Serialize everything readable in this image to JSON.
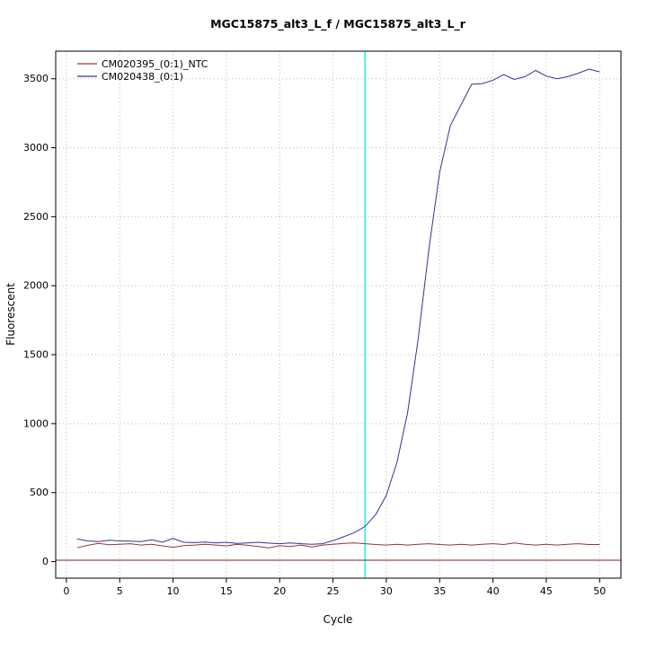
{
  "chart_data": {
    "type": "line",
    "title": "MGC15875_alt3_L_f / MGC15875_alt3_L_r",
    "xlabel": "Cycle",
    "ylabel": "Fluorescent",
    "xlim": [
      -1,
      52
    ],
    "ylim": [
      -120,
      3700
    ],
    "x_ticks": [
      0,
      5,
      10,
      15,
      20,
      25,
      30,
      35,
      40,
      45,
      50
    ],
    "y_ticks": [
      0,
      500,
      1000,
      1500,
      2000,
      2500,
      3000,
      3500
    ],
    "grid": "dotted",
    "legend_position": "top-left",
    "x": [
      1,
      2,
      3,
      4,
      5,
      6,
      7,
      8,
      9,
      10,
      11,
      12,
      13,
      14,
      15,
      16,
      17,
      18,
      19,
      20,
      21,
      22,
      23,
      24,
      25,
      26,
      27,
      28,
      29,
      30,
      31,
      32,
      33,
      34,
      35,
      36,
      37,
      38,
      39,
      40,
      41,
      42,
      43,
      44,
      45,
      46,
      47,
      48,
      49,
      50
    ],
    "series": [
      {
        "name": "CM020395_(0:1)_NTC",
        "color": "#993333",
        "values": [
          100,
          118,
          132,
          122,
          126,
          130,
          120,
          126,
          114,
          104,
          116,
          120,
          126,
          120,
          114,
          126,
          118,
          110,
          100,
          116,
          110,
          120,
          106,
          120,
          126,
          132,
          136,
          130,
          124,
          120,
          126,
          120,
          126,
          130,
          124,
          120,
          126,
          120,
          126,
          130,
          124,
          136,
          126,
          120,
          126,
          120,
          126,
          130,
          124,
          124
        ]
      },
      {
        "name": "CM020438_(0:1)",
        "color": "#333399",
        "values": [
          165,
          150,
          145,
          155,
          150,
          148,
          145,
          158,
          140,
          168,
          140,
          138,
          142,
          136,
          140,
          132,
          136,
          140,
          134,
          130,
          136,
          130,
          126,
          130,
          152,
          180,
          210,
          255,
          340,
          480,
          720,
          1080,
          1620,
          2270,
          2820,
          3160,
          3310,
          3460,
          3465,
          3490,
          3530,
          3495,
          3515,
          3560,
          3520,
          3500,
          3515,
          3540,
          3570,
          3550
        ]
      }
    ],
    "threshold_line": {
      "y": 10,
      "color": "#7f1f1f"
    },
    "vertical_line": {
      "x": 28,
      "color": "#00eeee"
    }
  },
  "colors": {
    "background": "#ffffff",
    "grid": "#b9b9b9",
    "axis": "#000000"
  }
}
